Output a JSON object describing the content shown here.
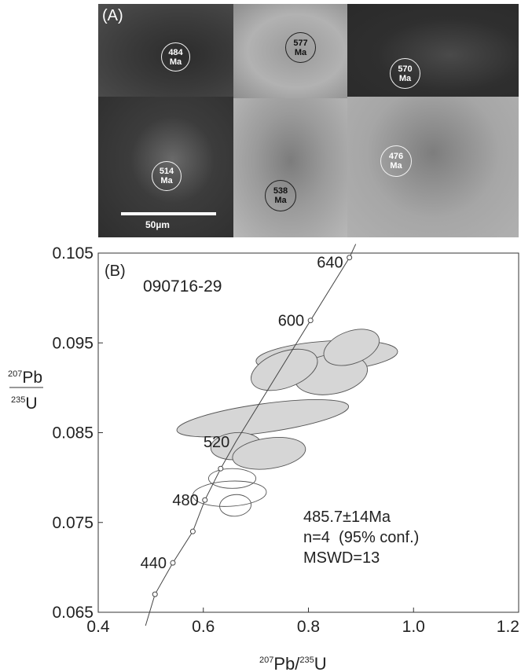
{
  "panel_a": {
    "label": "(A)",
    "scale_bar_label": "50µm",
    "grains": [
      {
        "age": "484\nMa"
      },
      {
        "age": "577\nMa"
      },
      {
        "age": "570\nMa"
      },
      {
        "age": "514\nMa"
      },
      {
        "age": "538\nMa"
      },
      {
        "age": "476\nMa"
      }
    ]
  },
  "panel_b": {
    "label": "(B)",
    "sample_id": "090716-29",
    "ylabel_top": "207Pb",
    "ylabel_bottom": "235U",
    "xlabel": "207Pb/235U",
    "result": {
      "age": "485.7±14Ma",
      "n": "n=4  (95% conf.)",
      "mswd": "MSWD=13"
    }
  },
  "chart_data": {
    "type": "scatter",
    "xlim": [
      0.4,
      1.2
    ],
    "ylim": [
      0.065,
      0.105
    ],
    "x_ticks": [
      "0.4",
      "0.6",
      "0.8",
      "1.0",
      "1.2"
    ],
    "y_ticks": [
      "0.065",
      "0.075",
      "0.085",
      "0.095",
      "0.105"
    ],
    "y_tick_values": [
      0.065,
      0.075,
      0.085,
      0.095,
      0.105
    ],
    "x_tick_values": [
      0.4,
      0.6,
      0.8,
      1.0,
      1.2
    ],
    "concordia_labels": [
      {
        "text": "440",
        "x": 0.542,
        "y": 0.0705
      },
      {
        "text": "480",
        "x": 0.603,
        "y": 0.0775
      },
      {
        "text": "520",
        "x": 0.662,
        "y": 0.084
      },
      {
        "text": "600",
        "x": 0.804,
        "y": 0.0975
      },
      {
        "text": "640",
        "x": 0.878,
        "y": 0.104
      }
    ],
    "concordia_line": [
      {
        "x": 0.49,
        "y": 0.0635
      },
      {
        "x": 0.508,
        "y": 0.067
      },
      {
        "x": 0.542,
        "y": 0.0705
      },
      {
        "x": 0.58,
        "y": 0.074
      },
      {
        "x": 0.603,
        "y": 0.0775
      },
      {
        "x": 0.633,
        "y": 0.081
      },
      {
        "x": 0.662,
        "y": 0.084
      },
      {
        "x": 0.804,
        "y": 0.0975
      },
      {
        "x": 0.878,
        "y": 0.1045
      },
      {
        "x": 0.89,
        "y": 0.106
      }
    ],
    "concordia_points": [
      {
        "x": 0.508,
        "y": 0.067
      },
      {
        "x": 0.542,
        "y": 0.0705
      },
      {
        "x": 0.58,
        "y": 0.074
      },
      {
        "x": 0.603,
        "y": 0.0775
      },
      {
        "x": 0.633,
        "y": 0.081
      },
      {
        "x": 0.804,
        "y": 0.0975
      },
      {
        "x": 0.878,
        "y": 0.1045
      }
    ],
    "error_ellipses": [
      {
        "x": 0.835,
        "y": 0.0935,
        "rx": 0.135,
        "ry": 0.0017,
        "angle_deg": -4,
        "filled": true
      },
      {
        "x": 0.843,
        "y": 0.0915,
        "rx": 0.07,
        "ry": 0.0022,
        "angle_deg": -10,
        "filled": true
      },
      {
        "x": 0.882,
        "y": 0.0945,
        "rx": 0.055,
        "ry": 0.0018,
        "angle_deg": -20,
        "filled": true
      },
      {
        "x": 0.754,
        "y": 0.092,
        "rx": 0.066,
        "ry": 0.002,
        "angle_deg": -20,
        "filled": true
      },
      {
        "x": 0.713,
        "y": 0.0866,
        "rx": 0.165,
        "ry": 0.0016,
        "angle_deg": -8,
        "filled": true
      },
      {
        "x": 0.662,
        "y": 0.0835,
        "rx": 0.048,
        "ry": 0.0015,
        "angle_deg": -5,
        "filled": true
      },
      {
        "x": 0.725,
        "y": 0.0827,
        "rx": 0.07,
        "ry": 0.0017,
        "angle_deg": -8,
        "filled": true
      },
      {
        "x": 0.655,
        "y": 0.0799,
        "rx": 0.045,
        "ry": 0.0011,
        "angle_deg": 0,
        "filled": false
      },
      {
        "x": 0.65,
        "y": 0.0782,
        "rx": 0.07,
        "ry": 0.0014,
        "angle_deg": -3,
        "filled": false
      },
      {
        "x": 0.661,
        "y": 0.0769,
        "rx": 0.03,
        "ry": 0.0012,
        "angle_deg": -5,
        "filled": false
      }
    ]
  }
}
